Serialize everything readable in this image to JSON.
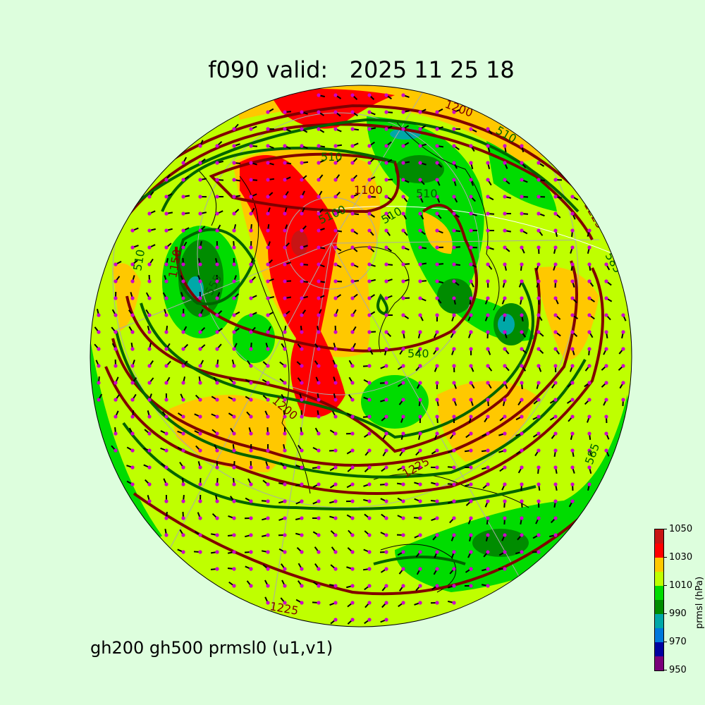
{
  "title": "f090 valid:   2025 11 25 18",
  "subtitle": "gh200 gh500 prmsl0 (u1,v1)",
  "colorbar": {
    "label": "prmsl (hPa)",
    "ticks": [
      "950",
      "970",
      "990",
      "1010",
      "1030",
      "1050"
    ],
    "levels": [
      950,
      960,
      970,
      980,
      990,
      1000,
      1010,
      1020,
      1030,
      1040,
      1050
    ],
    "colors": [
      "#7a007a",
      "#0000a0",
      "#0078dc",
      "#00a8a8",
      "#008c00",
      "#00dc00",
      "#bfff00",
      "#ffc800",
      "#ff0000",
      "#c81414"
    ]
  },
  "map": {
    "projection": "orthographic, north polar",
    "gh200_color": "#800000",
    "gh500_color": "#006400",
    "wind_dot_color": "#cc00cc",
    "contour_labels": [
      {
        "text": "510",
        "series": "gh500"
      },
      {
        "text": "1100",
        "series": "gh200"
      },
      {
        "text": "5100",
        "series": "gh500"
      },
      {
        "text": "510",
        "series": "gh500"
      },
      {
        "text": "510",
        "series": "gh500"
      },
      {
        "text": "1200",
        "series": "gh200"
      },
      {
        "text": "510",
        "series": "gh500"
      },
      {
        "text": "1225",
        "series": "gh200"
      },
      {
        "text": "585",
        "series": "gh500"
      },
      {
        "text": "1150",
        "series": "gh200"
      },
      {
        "text": "510",
        "series": "gh500"
      },
      {
        "text": "555",
        "series": "gh500"
      },
      {
        "text": "1200",
        "series": "gh200"
      },
      {
        "text": "540",
        "series": "gh500"
      },
      {
        "text": "1225",
        "series": "gh200"
      },
      {
        "text": "585",
        "series": "gh500"
      },
      {
        "text": "1225",
        "series": "gh200"
      }
    ]
  }
}
